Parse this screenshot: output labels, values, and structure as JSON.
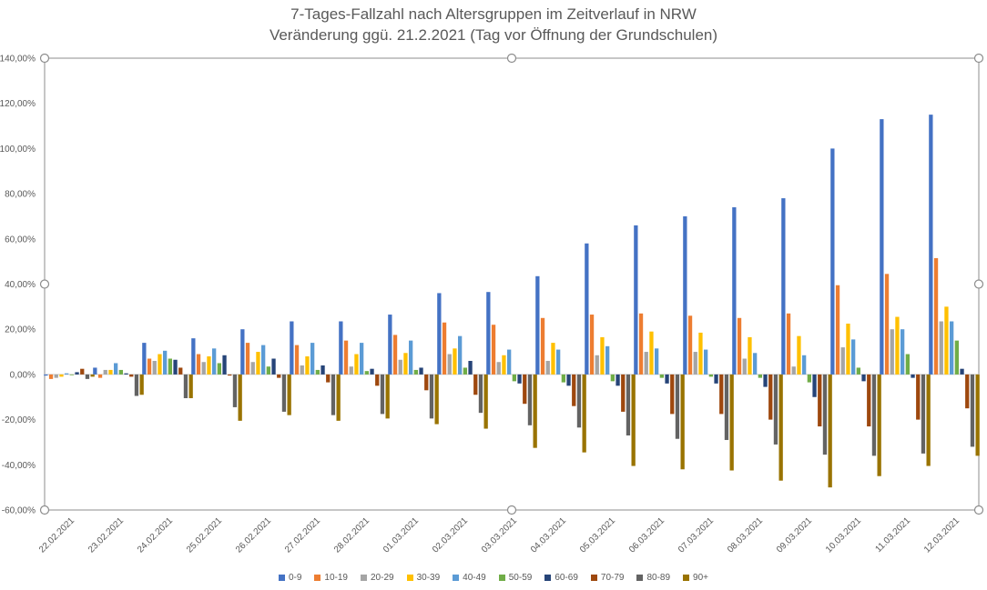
{
  "chart_data": {
    "type": "bar",
    "title": "7-Tages-Fallzahl nach Altersgruppen im Zeitverlauf in NRW",
    "subtitle": "Veränderung ggü. 21.2.2021 (Tag vor Öffnung der Grundschulen)",
    "xlabel": "",
    "ylabel": "",
    "ylim": [
      -60,
      140
    ],
    "yticks": [
      -60,
      -40,
      -20,
      0,
      20,
      40,
      60,
      80,
      100,
      120,
      140
    ],
    "ytick_labels": [
      "-60,00%",
      "-40,00%",
      "-20,00%",
      "0,00%",
      "20,00%",
      "40,00%",
      "60,00%",
      "80,00%",
      "100,00%",
      "120,00%",
      "140,00%"
    ],
    "grid": false,
    "legend": "bottom",
    "categories": [
      "22.02.2021",
      "23.02.2021",
      "24.02.2021",
      "25.02.2021",
      "26.02.2021",
      "27.02.2021",
      "28.02.2021",
      "01.03.2021",
      "02.03.2021",
      "03.03.2021",
      "04.03.2021",
      "05.03.2021",
      "06.03.2021",
      "07.03.2021",
      "08.03.2021",
      "09.03.2021",
      "10.03.2021",
      "11.03.2021",
      "12.03.2021"
    ],
    "series": [
      {
        "name": "0-9",
        "color": "#4472c4",
        "values": [
          -0.5,
          3,
          14,
          16,
          20,
          23.5,
          23.5,
          26.5,
          36,
          36.5,
          43.5,
          58,
          66,
          70,
          74,
          78,
          100,
          113,
          115
        ]
      },
      {
        "name": "10-19",
        "color": "#ed7d31",
        "values": [
          -2,
          -1.5,
          7,
          9,
          14,
          13,
          15,
          17.5,
          23,
          22,
          25,
          26.5,
          27,
          26,
          25,
          27,
          39.5,
          44.5,
          51.5
        ]
      },
      {
        "name": "20-29",
        "color": "#a5a5a5",
        "values": [
          -1.5,
          2,
          6,
          5.5,
          5.5,
          4,
          3.5,
          6.5,
          9,
          5.5,
          6,
          8.5,
          10,
          10,
          7,
          3.5,
          12,
          20,
          23.5
        ]
      },
      {
        "name": "30-39",
        "color": "#ffc000",
        "values": [
          -1,
          2,
          9,
          8,
          10,
          8,
          9,
          9.5,
          11.5,
          8.5,
          14,
          16.5,
          19,
          18.5,
          16.5,
          17,
          22.5,
          25.5,
          30
        ]
      },
      {
        "name": "40-49",
        "color": "#5b9bd5",
        "values": [
          0.5,
          5,
          10.5,
          11.5,
          13,
          14,
          14,
          15,
          17,
          11,
          11,
          12.5,
          11.5,
          11,
          9.5,
          8.5,
          15.5,
          20,
          23.5
        ]
      },
      {
        "name": "50-59",
        "color": "#70ad47",
        "values": [
          0,
          2,
          7,
          5,
          3.5,
          2,
          1.5,
          2,
          3,
          -3,
          -3.5,
          -3,
          -1.5,
          -1,
          -1.5,
          -3.5,
          3,
          9,
          15
        ]
      },
      {
        "name": "60-69",
        "color": "#264478",
        "values": [
          1,
          0.5,
          6.5,
          8.5,
          7,
          4,
          2.5,
          3,
          6,
          -4,
          -5,
          -5,
          -4,
          -4,
          -5.5,
          -10,
          -3,
          -1.5,
          2.5
        ]
      },
      {
        "name": "70-79",
        "color": "#9e480e",
        "values": [
          2.5,
          -1,
          3,
          -0.5,
          -1.5,
          -3.5,
          -5,
          -7,
          -9,
          -13,
          -14,
          -16.5,
          -17.5,
          -17.5,
          -20,
          -23,
          -23,
          -20,
          -15
        ]
      },
      {
        "name": "80-89",
        "color": "#636363",
        "values": [
          -2,
          -9.5,
          -10.5,
          -14.5,
          -16.5,
          -18,
          -17.5,
          -19.5,
          -17,
          -22.5,
          -23.5,
          -27,
          -28.5,
          -29,
          -31,
          -35.5,
          -36,
          -35,
          -32
        ]
      },
      {
        "name": "90+",
        "color": "#997300",
        "values": [
          -1,
          -9,
          -10.5,
          -20.5,
          -18,
          -20.5,
          -19.5,
          -22,
          -24,
          -32.5,
          -34.5,
          -40.5,
          -42,
          -42.5,
          -47,
          -50,
          -45,
          -40.5,
          -36
        ]
      }
    ]
  }
}
